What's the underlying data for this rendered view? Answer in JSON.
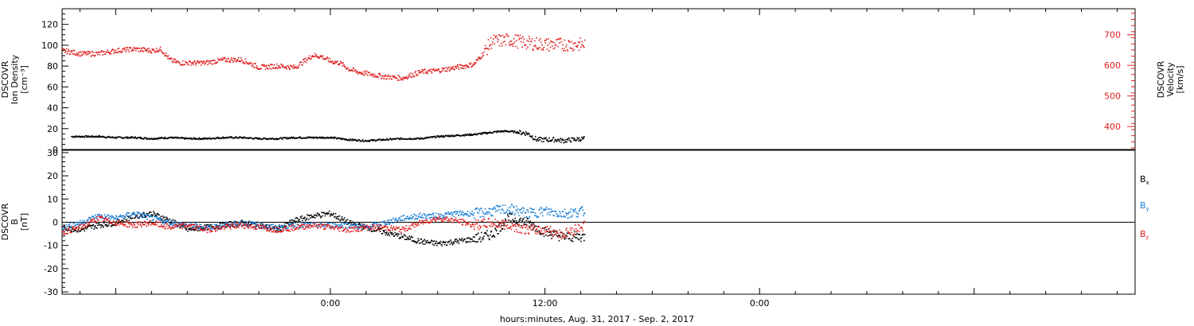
{
  "footer": {
    "time_label": "hours:minutes, Aug. 31, 2017 - Sep.  2, 2017"
  },
  "colors": {
    "red": "#e02020",
    "blue": "#1a7fd6",
    "black": "#000000"
  },
  "chart_data": [
    {
      "type": "scatter",
      "panel": "top",
      "left_ylabel_lines": [
        "DSCOVR",
        "Ion Density",
        "[cm⁻³]"
      ],
      "right_ylabel_lines": [
        "DSCOVR",
        "Velocity",
        "[km/s]"
      ],
      "left_ylim": [
        0,
        135
      ],
      "left_ticks": [
        "0",
        "20",
        "40",
        "60",
        "80",
        "100",
        "120"
      ],
      "right_ylim": [
        325,
        785
      ],
      "right_ticks": [
        "400",
        "500",
        "600",
        "700"
      ],
      "xlim_hours": [
        -15,
        45
      ],
      "x_tick_labels": [
        {
          "hour": 0,
          "label": "0:00"
        },
        {
          "hour": 12,
          "label": "12:00"
        },
        {
          "hour": 24,
          "label": "0:00"
        }
      ],
      "series": [
        {
          "color": "black",
          "axis": "left",
          "x": [
            -14.5,
            -13,
            -12,
            -11,
            -10,
            -9,
            -8,
            -7,
            -6,
            -5,
            -4,
            -3,
            -2,
            -1,
            0,
            1,
            2,
            3,
            4,
            5,
            6,
            7,
            8,
            8.5,
            9,
            9.5,
            10,
            10.5,
            11,
            11.5,
            12,
            12.5,
            13,
            13.5,
            14.2
          ],
          "y": [
            13,
            13,
            12,
            12,
            11,
            12,
            11,
            11,
            12,
            12,
            11,
            11,
            12,
            12,
            12,
            10,
            9,
            10,
            11,
            11,
            13,
            14,
            15,
            16,
            17,
            18,
            18,
            17,
            16,
            10,
            10,
            10,
            9,
            10,
            11
          ]
        },
        {
          "color": "red",
          "axis": "right",
          "x": [
            -15,
            -14,
            -13,
            -12,
            -11,
            -10,
            -9.5,
            -9,
            -8.5,
            -8,
            -7,
            -6,
            -5,
            -4,
            -3,
            -2,
            -1,
            -0.5,
            0,
            0.5,
            1,
            1.5,
            2,
            3,
            4,
            5,
            6,
            7,
            8,
            8.5,
            9,
            10,
            11,
            12,
            13,
            14.2
          ],
          "y": [
            650,
            640,
            640,
            650,
            655,
            650,
            655,
            620,
            610,
            610,
            610,
            620,
            620,
            595,
            600,
            595,
            635,
            630,
            615,
            610,
            590,
            580,
            575,
            565,
            560,
            580,
            585,
            595,
            605,
            640,
            680,
            685,
            675,
            670,
            670,
            670
          ]
        }
      ]
    },
    {
      "type": "scatter",
      "panel": "bottom",
      "left_ylabel_lines": [
        "DSCOVR",
        "B",
        "[nT]"
      ],
      "ylim": [
        -31,
        31
      ],
      "ticks": [
        "-30",
        "-20",
        "-10",
        "0",
        "10",
        "20",
        "30"
      ],
      "zero_line": true,
      "legend": [
        "Bx",
        "By",
        "Bz"
      ],
      "legend_placement": "right",
      "series": [
        {
          "name": "Bx",
          "color": "black",
          "x": [
            -15,
            -14,
            -13,
            -12,
            -11,
            -10,
            -9,
            -8,
            -7,
            -6,
            -5,
            -4,
            -3,
            -2,
            -1,
            0,
            1,
            2,
            3,
            4,
            5,
            6,
            7,
            8,
            9,
            10,
            11,
            12,
            13,
            14.2
          ],
          "y": [
            -2,
            -3,
            -1,
            0,
            3,
            4,
            1,
            -3,
            -2,
            -1,
            0,
            -1,
            -3,
            1,
            3,
            4,
            0,
            -2,
            -4,
            -6,
            -8,
            -9,
            -8,
            -7,
            -5,
            2,
            0,
            -4,
            -6,
            -6
          ]
        },
        {
          "name": "By",
          "color": "blue",
          "x": [
            -15,
            -14,
            -13,
            -12,
            -11,
            -10,
            -9,
            -8,
            -7,
            -6,
            -5,
            -4,
            -3,
            -2,
            -1,
            0,
            1,
            2,
            3,
            4,
            5,
            6,
            7,
            8,
            9,
            10,
            11,
            12,
            13,
            14.2
          ],
          "y": [
            -2,
            0,
            3,
            2,
            4,
            2,
            0,
            -1,
            -2,
            -1,
            0,
            -1,
            -2,
            -1,
            -1,
            -1,
            -1,
            -2,
            0,
            2,
            3,
            3,
            4,
            4,
            5,
            6,
            4,
            5,
            4,
            5
          ]
        },
        {
          "name": "Bz",
          "color": "red",
          "x": [
            -15,
            -14,
            -13,
            -12,
            -11,
            -10,
            -9,
            -8,
            -7,
            -6,
            -5,
            -4,
            -3,
            -2,
            -1,
            0,
            1,
            2,
            3,
            4,
            5,
            6,
            7,
            8,
            9,
            10,
            11,
            12,
            13,
            14.2
          ],
          "y": [
            -4,
            -2,
            2,
            0,
            -1,
            0,
            -2,
            -1,
            -3,
            -2,
            -1,
            -2,
            -3,
            -2,
            -1,
            -2,
            -3,
            -2,
            -2,
            -3,
            0,
            2,
            1,
            -1,
            0,
            -1,
            -3,
            -3,
            -5,
            -1
          ]
        }
      ]
    }
  ]
}
